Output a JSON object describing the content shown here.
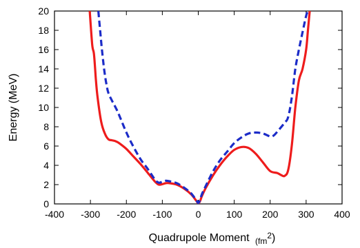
{
  "chart_data": {
    "type": "line",
    "xlabel": "Quadrupole Moment",
    "xlabel_unit": "(fm",
    "xlabel_unit_exp": "2",
    "xlabel_unit_close": ")",
    "ylabel": "Energy (MeV)",
    "xlim": [
      -400,
      400
    ],
    "ylim": [
      0,
      20
    ],
    "xticks": [
      -400,
      -300,
      -200,
      -100,
      0,
      100,
      200,
      300,
      400
    ],
    "yticks": [
      0,
      2,
      4,
      6,
      8,
      10,
      12,
      14,
      16,
      18,
      20
    ],
    "grid": false,
    "legend": "none",
    "series": [
      {
        "style": "solid",
        "color": "#ee1c1c",
        "x": [
          -302,
          -295,
          -290,
          -285,
          -280,
          -270,
          -260,
          -250,
          -240,
          -230,
          -220,
          -200,
          -180,
          -160,
          -140,
          -120,
          -110,
          -100,
          -90,
          -80,
          -60,
          -40,
          -20,
          -5,
          0,
          5,
          10,
          20,
          40,
          60,
          80,
          100,
          120,
          140,
          160,
          180,
          200,
          220,
          230,
          240,
          250,
          260,
          270,
          280,
          290,
          300,
          305,
          310
        ],
        "y": [
          20,
          16.5,
          15.5,
          13,
          11,
          8.5,
          7.3,
          6.7,
          6.6,
          6.5,
          6.3,
          5.7,
          4.9,
          4.1,
          3.2,
          2.3,
          2.0,
          2.05,
          2.15,
          2.15,
          2.0,
          1.6,
          1.0,
          0.3,
          0.05,
          0.3,
          0.8,
          1.6,
          2.9,
          4.0,
          4.9,
          5.6,
          5.9,
          5.8,
          5.2,
          4.3,
          3.4,
          3.2,
          3.0,
          2.9,
          3.5,
          6.0,
          10.0,
          12.8,
          14.0,
          16.0,
          18.0,
          20
        ]
      },
      {
        "style": "dashed",
        "color": "#1c2cc8",
        "x": [
          -278,
          -273,
          -268,
          -262,
          -256,
          -250,
          -240,
          -230,
          -220,
          -200,
          -180,
          -160,
          -140,
          -120,
          -110,
          -100,
          -90,
          -80,
          -60,
          -40,
          -20,
          -5,
          0,
          5,
          10,
          20,
          40,
          60,
          80,
          100,
          120,
          140,
          160,
          180,
          200,
          210,
          220,
          240,
          250,
          260,
          270,
          280,
          290,
          300,
          305
        ],
        "y": [
          20,
          18,
          16,
          14,
          12.5,
          11.5,
          10.7,
          10.0,
          9.2,
          7.4,
          5.9,
          4.6,
          3.6,
          2.5,
          2.2,
          2.3,
          2.4,
          2.35,
          2.15,
          1.7,
          1.1,
          0.35,
          0.1,
          0.4,
          1.0,
          1.8,
          3.3,
          4.5,
          5.4,
          6.3,
          6.9,
          7.3,
          7.4,
          7.3,
          7.0,
          7.1,
          7.5,
          8.4,
          9.0,
          11.0,
          14.0,
          16.0,
          17.8,
          19.5,
          20
        ]
      }
    ]
  }
}
